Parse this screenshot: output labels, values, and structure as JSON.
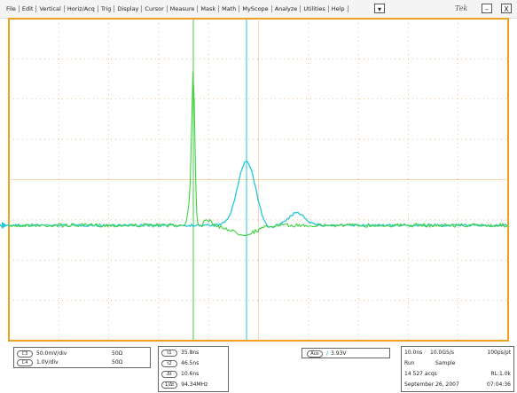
{
  "menu": [
    "File",
    "Edit",
    "Vertical",
    "Horiz/Acq",
    "Trig",
    "Display",
    "Cursor",
    "Measure",
    "Mask",
    "Math",
    "MyScope",
    "Analyze",
    "Utilities",
    "Help"
  ],
  "window": {
    "dropdown": "▾",
    "logo": "Tek",
    "minimize": "–",
    "close": "X"
  },
  "channels": [
    {
      "badge": "C3",
      "scale": "50.0mV/div",
      "impedance": "50Ω"
    },
    {
      "badge": "C4",
      "scale": "1.0V/div",
      "impedance": "50Ω"
    }
  ],
  "cursors": [
    {
      "badge": "t1",
      "value": "35.8ns"
    },
    {
      "badge": "t2",
      "value": "46.5ns"
    },
    {
      "badge": "Δt",
      "value": "10.6ns"
    },
    {
      "badge": "1/Δt",
      "value": "94.34MHz"
    }
  ],
  "trigger": {
    "source": "Aux",
    "slope": "/",
    "level": "3.93V"
  },
  "acquisition": {
    "timebase": "10.0ns",
    "rate": "10.0GS/s",
    "resolution": "100ps/pt",
    "state": "Run",
    "mode": "Sample",
    "count": "14 527 acqs",
    "record": "RL:1.0k",
    "date": "September 26, 2007",
    "time": "07:04:36"
  }
}
